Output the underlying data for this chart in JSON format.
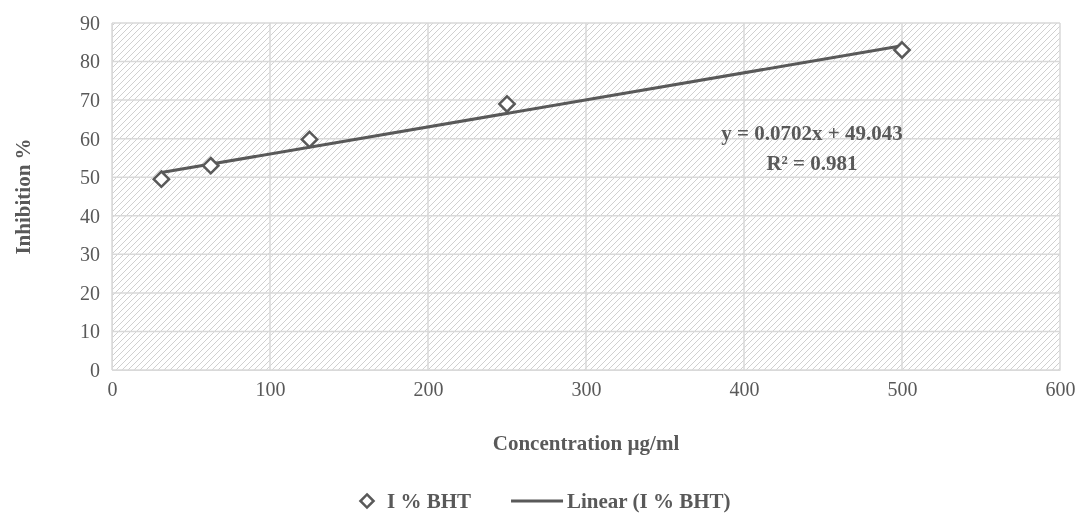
{
  "chart_data": {
    "type": "scatter",
    "xlabel": "Concentration µg/ml",
    "ylabel": "Inhibition %",
    "xlim": [
      0,
      600
    ],
    "xticks": [
      0,
      100,
      200,
      300,
      400,
      500,
      600
    ],
    "ylim": [
      0,
      90
    ],
    "yticks": [
      0,
      10,
      20,
      30,
      40,
      50,
      60,
      70,
      80,
      90
    ],
    "grid": true,
    "legend": "bottom",
    "marker": "diamond",
    "series": [
      {
        "name": "I % BHT",
        "color": "#595959",
        "x": [
          31.25,
          62.5,
          125,
          250,
          500
        ],
        "values": [
          49.5,
          53,
          59.8,
          69,
          83
        ]
      },
      {
        "name": "Linear (I % BHT)",
        "type": "line",
        "color": "#595959",
        "x": [
          31.25,
          500
        ],
        "values": [
          51.2,
          84.1
        ],
        "line_style": "solid",
        "marker": "none"
      }
    ],
    "annotations": [
      "y = 0.0702x + 49.043",
      "R² = 0.981"
    ]
  }
}
